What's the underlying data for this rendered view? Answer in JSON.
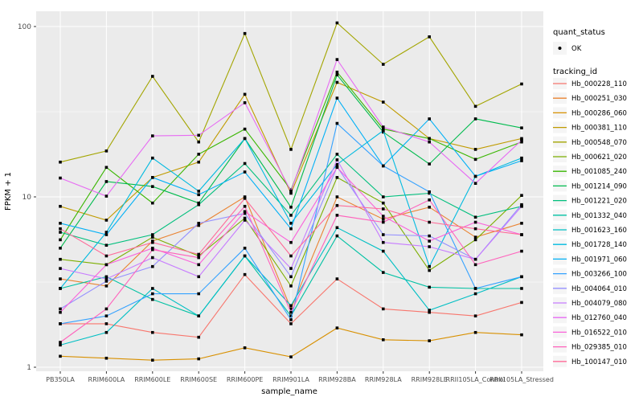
{
  "figure": {
    "background": "#FFFFFF",
    "panel_background": "#EBEBEB",
    "grid_color": "#FFFFFF",
    "tick_color": "#333333",
    "tick_label_color": "#4D4D4D",
    "point_color": "#000000"
  },
  "chart_data": {
    "type": "line",
    "title": "",
    "xlabel": "sample_name",
    "ylabel": "FPKM + 1",
    "y_scale": "log10",
    "y_ticks": [
      1,
      10,
      100
    ],
    "y_minor_ticks": [
      3.1623,
      31.623
    ],
    "ylim": [
      0.95,
      123
    ],
    "grid": true,
    "legend_position": "right",
    "quant_status": {
      "title": "quant_status",
      "items": [
        {
          "label": "OK",
          "marker": "point",
          "color": "#000000"
        }
      ]
    },
    "series_legend_title": "tracking_id",
    "categories": [
      "PB350LA",
      "RRIM600LA",
      "RRIM600LE",
      "RRIM600SE",
      "RRIM600PE",
      "RRIM901LA",
      "RRIM928BA",
      "RRIM928LA",
      "RRIM928LE",
      "RRII105LA_Control",
      "RRII105LA_Stressed"
    ],
    "series": [
      {
        "name": "Hb_000228_110",
        "color": "#F8766D",
        "values": [
          1.8,
          1.8,
          1.6,
          1.5,
          3.5,
          1.8,
          3.3,
          2.2,
          2.1,
          2.0,
          2.4
        ]
      },
      {
        "name": "Hb_000251_030",
        "color": "#EA8331",
        "values": [
          3.3,
          3.0,
          5.5,
          6.8,
          10,
          2.2,
          10,
          7.4,
          8.7,
          5.8,
          7.0
        ]
      },
      {
        "name": "Hb_000286_060",
        "color": "#D89000",
        "values": [
          1.16,
          1.13,
          1.1,
          1.12,
          1.3,
          1.15,
          1.7,
          1.45,
          1.43,
          1.6,
          1.55
        ]
      },
      {
        "name": "Hb_000381_110",
        "color": "#C09B00",
        "values": [
          8.8,
          7.3,
          13,
          16,
          40,
          10.5,
          47,
          36,
          22,
          19,
          22
        ]
      },
      {
        "name": "Hb_000548_070",
        "color": "#A3A500",
        "values": [
          16,
          18.6,
          51,
          21,
          91,
          19,
          105,
          60,
          87,
          34,
          46
        ]
      },
      {
        "name": "Hb_000621_020",
        "color": "#7CAE00",
        "values": [
          4.3,
          4.0,
          5.8,
          4.5,
          7.5,
          3.0,
          13,
          9.2,
          3.7,
          5.6,
          10.2
        ]
      },
      {
        "name": "Hb_001085_240",
        "color": "#39B600",
        "values": [
          5.6,
          14.9,
          9.2,
          17.8,
          25,
          11,
          54,
          25,
          22,
          16.6,
          21
        ]
      },
      {
        "name": "Hb_001214_090",
        "color": "#00BB4E",
        "values": [
          5.0,
          12.3,
          11.5,
          9.2,
          22,
          8.7,
          52,
          24,
          15.6,
          28.7,
          25.4
        ]
      },
      {
        "name": "Hb_001221_020",
        "color": "#00BF7D",
        "values": [
          6.2,
          5.2,
          6.0,
          9.0,
          15.7,
          7.8,
          17.8,
          10,
          10.5,
          7.6,
          8.8
        ]
      },
      {
        "name": "Hb_001332_040",
        "color": "#00C1A3",
        "values": [
          2.9,
          3.4,
          2.5,
          2.0,
          4.5,
          2.0,
          5.9,
          3.6,
          2.95,
          2.9,
          2.9
        ]
      },
      {
        "name": "Hb_001623_160",
        "color": "#00BFC4",
        "values": [
          1.35,
          1.6,
          2.9,
          2.0,
          4.5,
          2.3,
          6.6,
          4.8,
          2.16,
          2.7,
          3.4
        ]
      },
      {
        "name": "Hb_001728_140",
        "color": "#00BAE0",
        "values": [
          2.9,
          6.2,
          16.9,
          10.8,
          22,
          7.0,
          15.5,
          24.5,
          3.9,
          13.2,
          16.9
        ]
      },
      {
        "name": "Hb_001971_060",
        "color": "#00B0F6",
        "values": [
          7.0,
          6.0,
          13,
          10.3,
          14,
          6.5,
          38,
          15.2,
          28.7,
          13.2,
          16.3
        ]
      },
      {
        "name": "Hb_003266_100",
        "color": "#35A2FF",
        "values": [
          1.8,
          2.0,
          2.7,
          2.7,
          5.0,
          1.9,
          27,
          15.2,
          10.7,
          2.9,
          3.4
        ]
      },
      {
        "name": "Hb_004064_010",
        "color": "#9590FF",
        "values": [
          2.2,
          3.2,
          3.9,
          7.0,
          8.0,
          3.4,
          15,
          6.0,
          5.9,
          4.3,
          9.0
        ]
      },
      {
        "name": "Hb_004079_080",
        "color": "#C77CFF",
        "values": [
          3.8,
          3.3,
          4.4,
          3.4,
          7.3,
          3.8,
          16.5,
          5.4,
          5.1,
          4.3,
          8.8
        ]
      },
      {
        "name": "Hb_012760_040",
        "color": "#E76BF3",
        "values": [
          12.9,
          10.1,
          22.8,
          23,
          35.7,
          10.8,
          64,
          25.7,
          21,
          12,
          21.5
        ]
      },
      {
        "name": "Hb_016522_010",
        "color": "#FA62DB",
        "values": [
          2.1,
          4.0,
          5.0,
          4.0,
          8.2,
          5.4,
          14.9,
          7.7,
          5.5,
          7.1,
          6.0
        ]
      },
      {
        "name": "Hb_029385_010",
        "color": "#FF62BC",
        "values": [
          1.4,
          2.2,
          4.9,
          4.4,
          8.8,
          2.1,
          7.8,
          7.1,
          9.6,
          4.0,
          4.8
        ]
      },
      {
        "name": "Hb_100147_010",
        "color": "#FF6A98",
        "values": [
          6.5,
          4.5,
          5.4,
          4.6,
          9.8,
          4.5,
          8.9,
          8.5,
          7.1,
          6.5,
          6.0
        ]
      }
    ]
  }
}
